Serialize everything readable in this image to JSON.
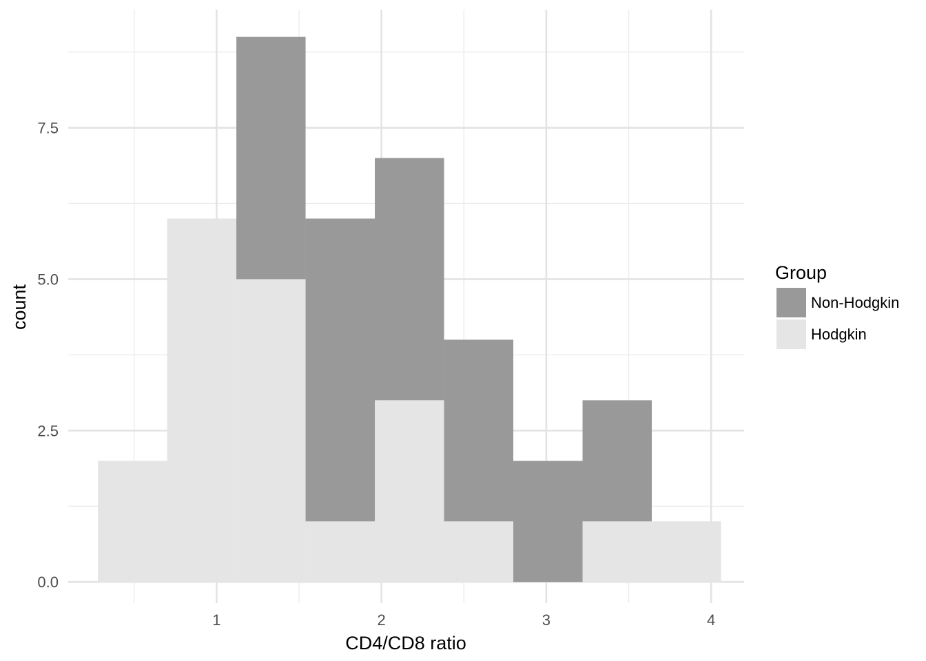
{
  "chart_data": {
    "type": "bar",
    "subtype": "overlapping histogram",
    "xlabel": "CD4/CD8 ratio",
    "ylabel": "count",
    "xlim": [
      0.1,
      4.2
    ],
    "ylim": [
      -0.35,
      9.45
    ],
    "x_ticks": [
      1,
      2,
      3,
      4
    ],
    "x_tick_labels": [
      "1",
      "2",
      "3",
      "4"
    ],
    "y_ticks": [
      0,
      2.5,
      5,
      7.5
    ],
    "y_tick_labels": [
      "0.0",
      "2.5",
      "5.0",
      "7.5"
    ],
    "grid": true,
    "legend_position": "right",
    "legend_title": "Group",
    "bins": [
      [
        0.28,
        0.7
      ],
      [
        0.7,
        1.12
      ],
      [
        1.12,
        1.54
      ],
      [
        1.54,
        1.96
      ],
      [
        1.96,
        2.38
      ],
      [
        2.38,
        2.8
      ],
      [
        2.8,
        3.22
      ],
      [
        3.22,
        3.64
      ],
      [
        3.64,
        4.06
      ]
    ],
    "series": [
      {
        "name": "Non-Hodgkin",
        "color": "#999999",
        "values": [
          0,
          0,
          9,
          6,
          7,
          4,
          2,
          3,
          0
        ]
      },
      {
        "name": "Hodgkin",
        "color": "#e5e5e5",
        "values": [
          2,
          6,
          5,
          1,
          3,
          1,
          0,
          1,
          1
        ]
      }
    ]
  }
}
